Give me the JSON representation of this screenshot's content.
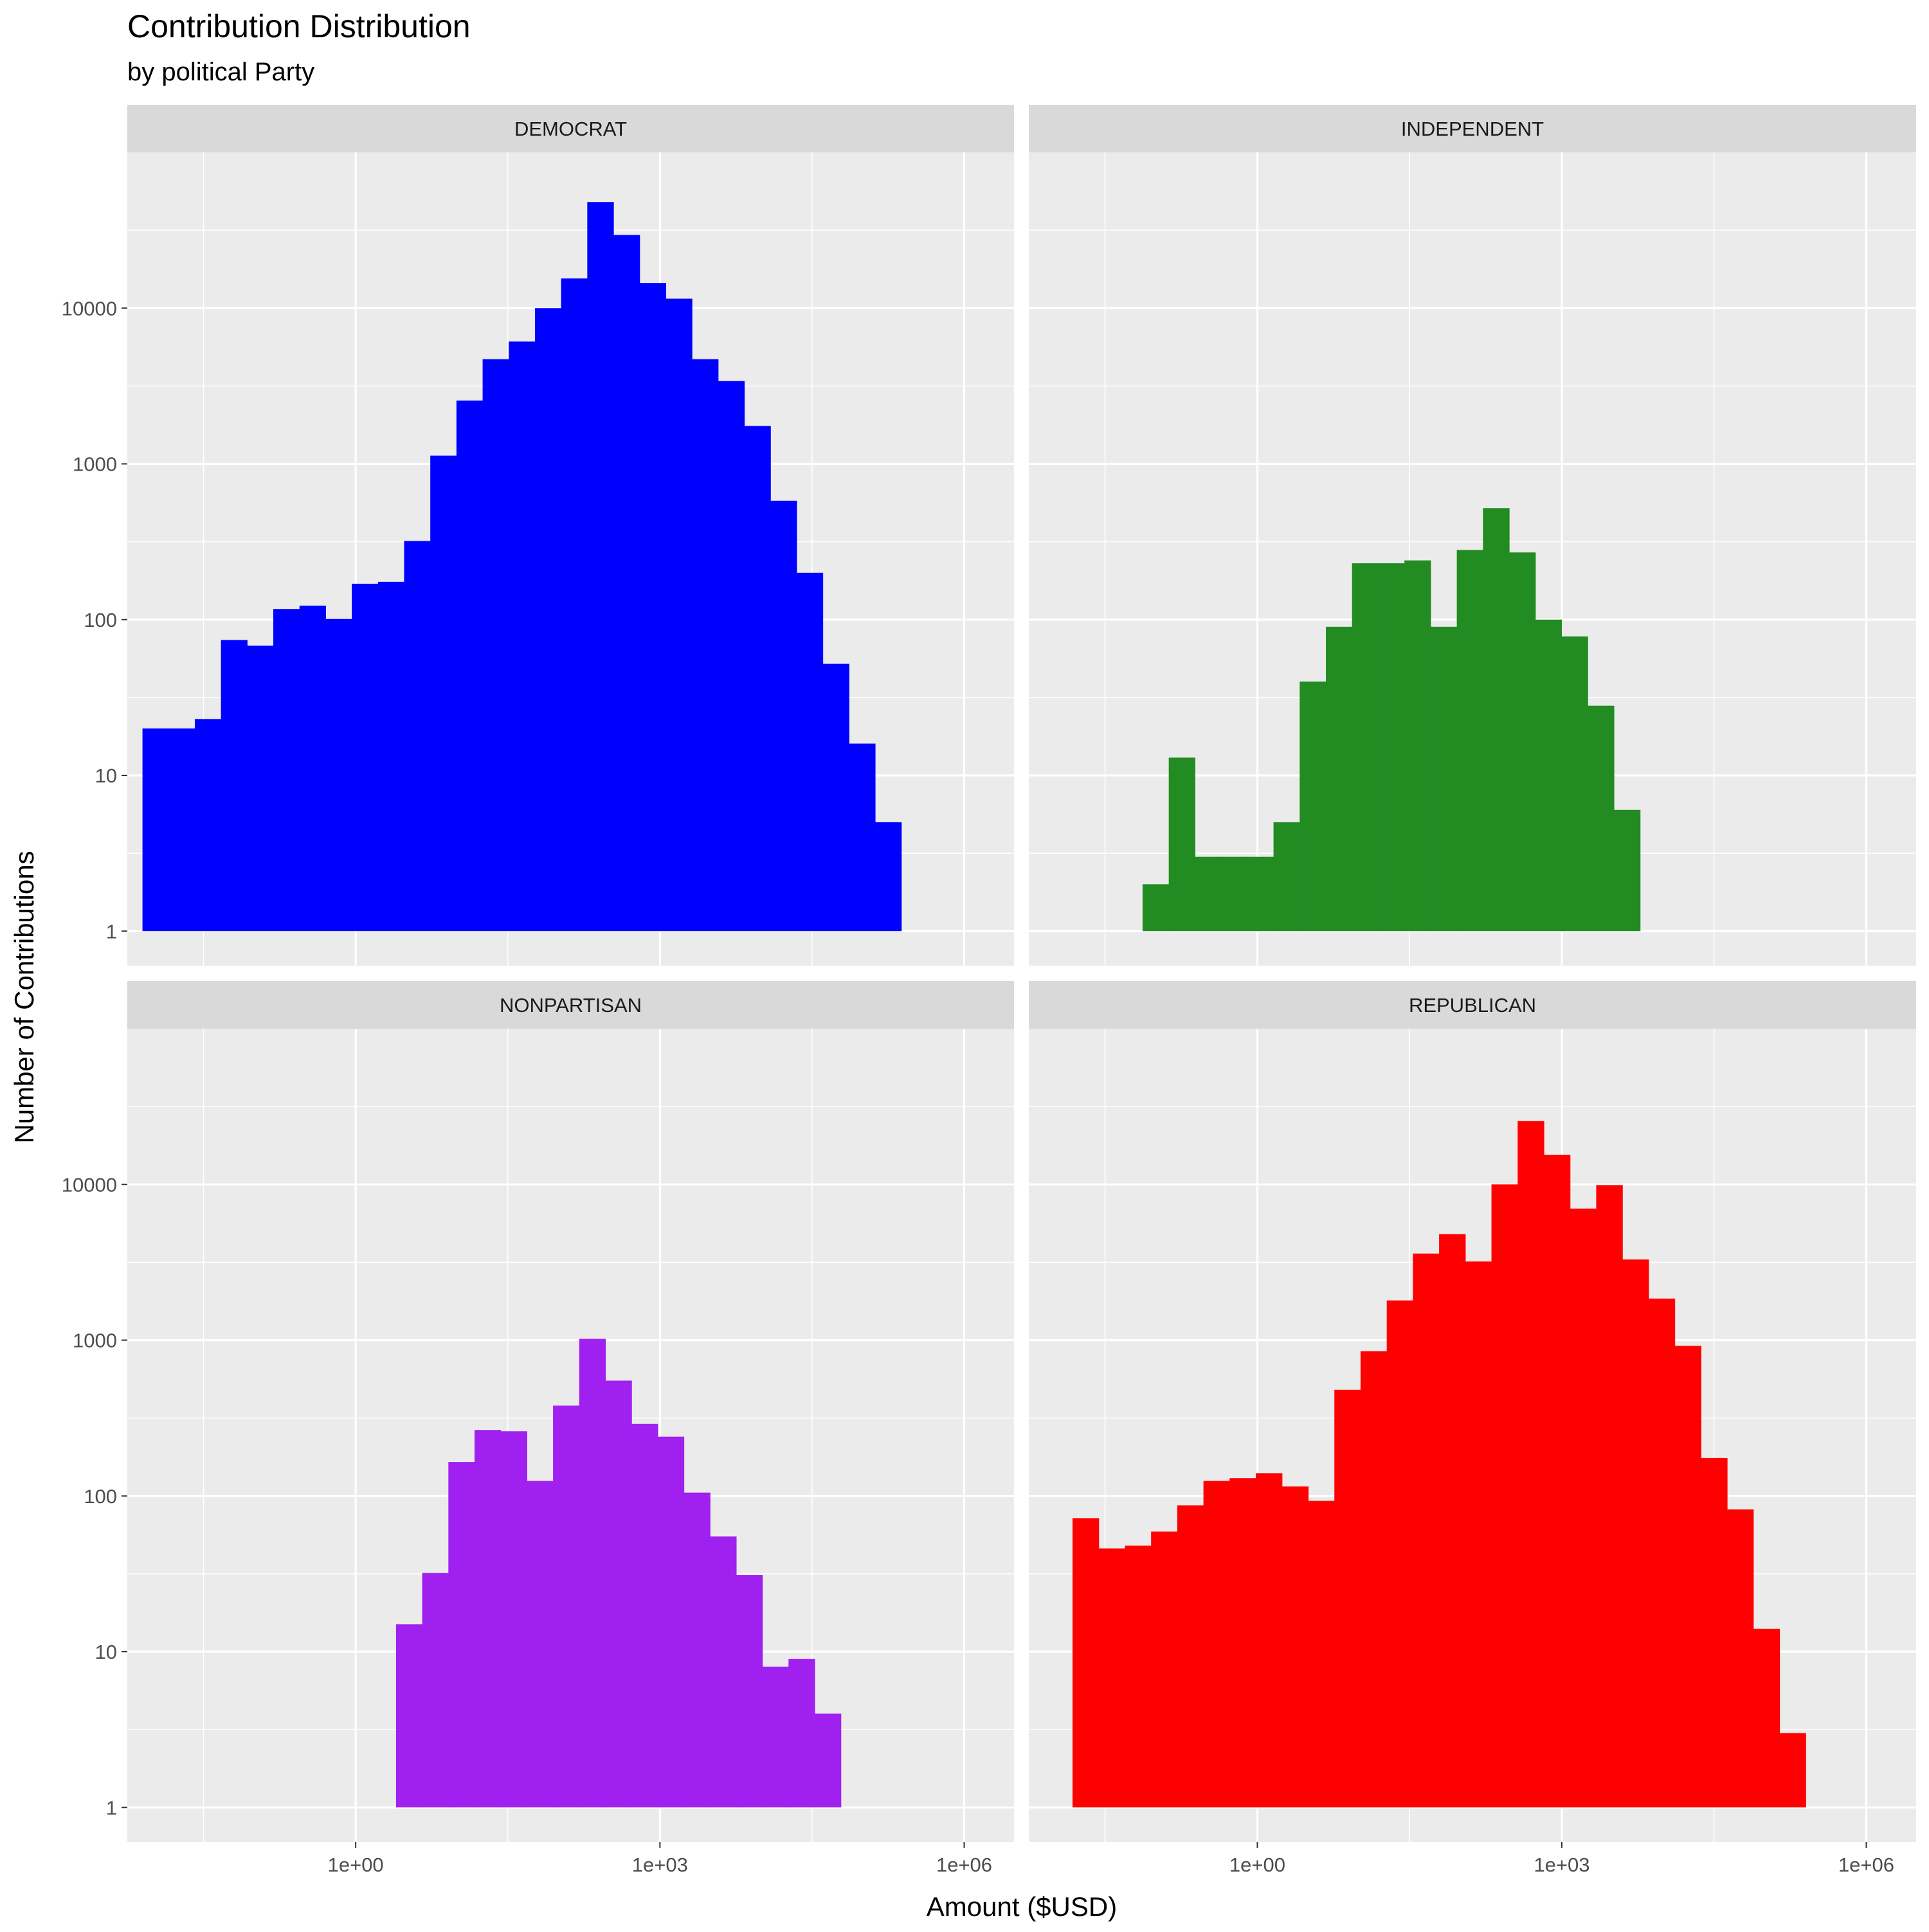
{
  "chart_data": {
    "type": "bar",
    "title": "Contribution Distribution",
    "subtitle": "by political Party",
    "xlabel": "Amount ($USD)",
    "ylabel": "Number of Contributions",
    "x_scale": "log10",
    "y_scale": "log10",
    "xlim": [
      0.0056,
      3100000
    ],
    "ylim": [
      0.6,
      100000
    ],
    "x_ticks": [
      1,
      1000,
      1000000
    ],
    "x_tick_labels": [
      "1e+00",
      "1e+03",
      "1e+06"
    ],
    "y_ticks": [
      1,
      10,
      100,
      1000,
      10000
    ],
    "y_tick_labels": [
      "1",
      "10",
      "100",
      "1000",
      "10000"
    ],
    "grid": true,
    "legend": "none",
    "bin_width_log10": 0.258,
    "facets": [
      {
        "name": "DEMOCRAT",
        "color": "#0000ff",
        "first_bin_start": 0.0079,
        "values": [
          20,
          20,
          23,
          74,
          68,
          117,
          123,
          101,
          170,
          175,
          320,
          1130,
          2550,
          4700,
          6100,
          10000,
          15500,
          48000,
          29500,
          14500,
          11500,
          4700,
          3400,
          1750,
          580,
          200,
          52,
          16,
          5
        ]
      },
      {
        "name": "INDEPENDENT",
        "color": "#228b22",
        "first_bin_start": 0.074,
        "values": [
          2,
          13,
          3,
          3,
          3,
          5,
          40,
          90,
          230,
          230,
          240,
          90,
          280,
          520,
          270,
          100,
          78,
          28,
          6
        ]
      },
      {
        "name": "NONPARTISAN",
        "color": "#a020f0",
        "first_bin_start": 2.5,
        "values": [
          15,
          32,
          165,
          265,
          260,
          125,
          380,
          1020,
          550,
          290,
          240,
          105,
          55,
          31,
          8,
          9,
          4
        ]
      },
      {
        "name": "REPUBLICAN",
        "color": "#ff0000",
        "first_bin_start": 0.0151,
        "values": [
          72,
          46,
          48,
          59,
          87,
          125,
          130,
          140,
          115,
          93,
          480,
          850,
          1800,
          3600,
          4800,
          3200,
          10000,
          25500,
          15500,
          7000,
          9900,
          3300,
          1850,
          920,
          175,
          82,
          14,
          3
        ]
      }
    ]
  }
}
